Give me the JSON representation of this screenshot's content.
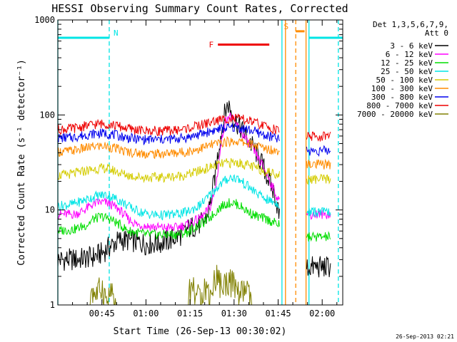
{
  "chart_data": {
    "type": "line",
    "title": "HESSI Observing Summary Count Rates, Corrected",
    "xlabel": "Start Time (26-Sep-13 00:30:02)",
    "ylabel": "Corrected Count Rate (s⁻¹ detector⁻¹)",
    "xlim_minutes_after_0030": [
      0,
      97
    ],
    "ylim": [
      1,
      1000
    ],
    "yscale": "log",
    "x_ticks": [
      {
        "label": "00:45",
        "minute": 15
      },
      {
        "label": "01:00",
        "minute": 30
      },
      {
        "label": "01:15",
        "minute": 45
      },
      {
        "label": "01:30",
        "minute": 60
      },
      {
        "label": "01:45",
        "minute": 75
      },
      {
        "label": "02:00",
        "minute": 90
      }
    ],
    "y_ticks": [
      {
        "label": "1",
        "value": 1
      },
      {
        "label": "10",
        "value": 10
      },
      {
        "label": "100",
        "value": 100
      },
      {
        "label": "1000",
        "value": 1000
      }
    ],
    "legend_header": [
      "Det 1,3,5,6,7,9,",
      "Att 0"
    ],
    "legend_placement": "right",
    "gaps_minutes": [
      [
        75.5,
        84.5
      ]
    ],
    "series": [
      {
        "name": "3 - 6 keV",
        "color": "#000000",
        "points": [
          [
            0,
            3
          ],
          [
            6,
            3
          ],
          [
            12,
            3.2
          ],
          [
            15,
            3.5
          ],
          [
            18,
            4.2
          ],
          [
            21,
            4.8
          ],
          [
            24,
            4.8
          ],
          [
            27,
            4.6
          ],
          [
            30,
            4.4
          ],
          [
            35,
            4.5
          ],
          [
            38,
            4.8
          ],
          [
            42,
            5.5
          ],
          [
            45,
            6.5
          ],
          [
            48,
            7
          ],
          [
            50,
            7.5
          ],
          [
            51,
            9
          ],
          [
            52,
            12
          ],
          [
            53,
            18
          ],
          [
            54,
            30
          ],
          [
            55,
            50
          ],
          [
            56,
            75
          ],
          [
            57,
            110
          ],
          [
            58,
            130
          ],
          [
            59,
            110
          ],
          [
            60,
            90
          ],
          [
            62,
            75
          ],
          [
            64,
            60
          ],
          [
            66,
            48
          ],
          [
            68,
            38
          ],
          [
            70,
            28
          ],
          [
            72,
            20
          ],
          [
            74,
            14
          ],
          [
            75,
            10
          ],
          [
            75.5,
            8
          ],
          [
            84.5,
            2.5
          ],
          [
            90,
            2.5
          ],
          [
            93,
            2.5
          ]
        ]
      },
      {
        "name": "6 - 12 keV",
        "color": "#ff00ff",
        "points": [
          [
            0,
            9
          ],
          [
            6,
            9
          ],
          [
            9,
            10
          ],
          [
            12,
            11.5
          ],
          [
            14,
            12
          ],
          [
            16,
            12
          ],
          [
            18,
            11.5
          ],
          [
            21,
            10
          ],
          [
            24,
            8
          ],
          [
            27,
            7
          ],
          [
            30,
            6.8
          ],
          [
            35,
            6.5
          ],
          [
            40,
            6.5
          ],
          [
            44,
            7
          ],
          [
            48,
            8
          ],
          [
            50,
            9
          ],
          [
            52,
            11
          ],
          [
            53,
            14
          ],
          [
            54,
            20
          ],
          [
            55,
            35
          ],
          [
            56,
            60
          ],
          [
            57,
            85
          ],
          [
            58,
            100
          ],
          [
            59,
            95
          ],
          [
            60,
            85
          ],
          [
            62,
            70
          ],
          [
            64,
            55
          ],
          [
            66,
            45
          ],
          [
            68,
            36
          ],
          [
            70,
            28
          ],
          [
            72,
            21
          ],
          [
            74,
            15
          ],
          [
            75.5,
            12
          ],
          [
            84.5,
            9
          ],
          [
            90,
            9
          ],
          [
            93,
            9
          ]
        ]
      },
      {
        "name": "12 - 25 keV",
        "color": "#00dd00",
        "points": [
          [
            0,
            6
          ],
          [
            6,
            6.3
          ],
          [
            10,
            7
          ],
          [
            12,
            8
          ],
          [
            15,
            8.5
          ],
          [
            18,
            8
          ],
          [
            21,
            7
          ],
          [
            24,
            6
          ],
          [
            27,
            5.8
          ],
          [
            30,
            5.5
          ],
          [
            36,
            5.5
          ],
          [
            40,
            5.5
          ],
          [
            44,
            5.8
          ],
          [
            48,
            7
          ],
          [
            50,
            7.5
          ],
          [
            53,
            9
          ],
          [
            55,
            10.5
          ],
          [
            57,
            11.5
          ],
          [
            59,
            12
          ],
          [
            61,
            11.5
          ],
          [
            63,
            10.5
          ],
          [
            65,
            9.5
          ],
          [
            68,
            8.5
          ],
          [
            71,
            8
          ],
          [
            73,
            7.5
          ],
          [
            75.5,
            7
          ],
          [
            84.5,
            5.2
          ],
          [
            90,
            5.2
          ],
          [
            93,
            5.2
          ]
        ]
      },
      {
        "name": "25 - 50 keV",
        "color": "#00e5e5",
        "points": [
          [
            0,
            11
          ],
          [
            5,
            11.5
          ],
          [
            10,
            13
          ],
          [
            13,
            14
          ],
          [
            16,
            14.5
          ],
          [
            19,
            13.5
          ],
          [
            22,
            12
          ],
          [
            25,
            10.5
          ],
          [
            28,
            9.5
          ],
          [
            31,
            9
          ],
          [
            35,
            8.8
          ],
          [
            40,
            9
          ],
          [
            44,
            9.5
          ],
          [
            48,
            11
          ],
          [
            51,
            13.5
          ],
          [
            54,
            17
          ],
          [
            57,
            20.5
          ],
          [
            59,
            22
          ],
          [
            61,
            21.5
          ],
          [
            63,
            19.5
          ],
          [
            66,
            16.5
          ],
          [
            69,
            14
          ],
          [
            72,
            12.5
          ],
          [
            75.5,
            11.5
          ],
          [
            84.5,
            9.5
          ],
          [
            90,
            9.5
          ],
          [
            93,
            9.5
          ]
        ]
      },
      {
        "name": "50 - 100 keV",
        "color": "#d4cc00",
        "points": [
          [
            0,
            23
          ],
          [
            5,
            24
          ],
          [
            10,
            26
          ],
          [
            13,
            27
          ],
          [
            16,
            27.5
          ],
          [
            19,
            26
          ],
          [
            22,
            24
          ],
          [
            26,
            22.5
          ],
          [
            30,
            22
          ],
          [
            35,
            22
          ],
          [
            40,
            22.5
          ],
          [
            44,
            23.5
          ],
          [
            48,
            25.5
          ],
          [
            51,
            27.5
          ],
          [
            54,
            29.5
          ],
          [
            57,
            31
          ],
          [
            60,
            31.5
          ],
          [
            62,
            31
          ],
          [
            64,
            30
          ],
          [
            67,
            28
          ],
          [
            70,
            26
          ],
          [
            73,
            24.5
          ],
          [
            75.5,
            23.5
          ],
          [
            84.5,
            21
          ],
          [
            90,
            21
          ],
          [
            93,
            21
          ]
        ]
      },
      {
        "name": "100 - 300 keV",
        "color": "#ff8c00",
        "points": [
          [
            0,
            41
          ],
          [
            5,
            42
          ],
          [
            10,
            45
          ],
          [
            13,
            47
          ],
          [
            16,
            47
          ],
          [
            19,
            45
          ],
          [
            22,
            42
          ],
          [
            26,
            40
          ],
          [
            30,
            39
          ],
          [
            35,
            39
          ],
          [
            40,
            40
          ],
          [
            44,
            41
          ],
          [
            48,
            44
          ],
          [
            51,
            47
          ],
          [
            54,
            50
          ],
          [
            57,
            52
          ],
          [
            60,
            53
          ],
          [
            62,
            52
          ],
          [
            64,
            51
          ],
          [
            67,
            48
          ],
          [
            70,
            45
          ],
          [
            73,
            43
          ],
          [
            75.5,
            42
          ],
          [
            84.5,
            30
          ],
          [
            90,
            30
          ],
          [
            93,
            30
          ]
        ]
      },
      {
        "name": "300 - 800 keV",
        "color": "#0000ee",
        "points": [
          [
            0,
            57
          ],
          [
            5,
            58
          ],
          [
            10,
            62
          ],
          [
            13,
            64
          ],
          [
            16,
            64
          ],
          [
            19,
            62
          ],
          [
            22,
            59
          ],
          [
            26,
            56
          ],
          [
            30,
            55
          ],
          [
            35,
            55
          ],
          [
            40,
            56
          ],
          [
            44,
            58
          ],
          [
            48,
            62
          ],
          [
            51,
            66
          ],
          [
            54,
            70
          ],
          [
            57,
            73
          ],
          [
            60,
            74
          ],
          [
            62,
            73
          ],
          [
            64,
            71
          ],
          [
            67,
            67
          ],
          [
            70,
            62
          ],
          [
            73,
            58
          ],
          [
            75.5,
            55
          ],
          [
            84.5,
            42
          ],
          [
            90,
            42
          ],
          [
            93,
            42
          ]
        ]
      },
      {
        "name": "800 - 7000 keV",
        "color": "#ee0000",
        "points": [
          [
            0,
            70
          ],
          [
            5,
            72
          ],
          [
            10,
            77
          ],
          [
            13,
            80
          ],
          [
            16,
            81
          ],
          [
            19,
            78
          ],
          [
            22,
            74
          ],
          [
            26,
            70
          ],
          [
            30,
            68
          ],
          [
            35,
            68
          ],
          [
            40,
            69
          ],
          [
            44,
            72
          ],
          [
            48,
            77
          ],
          [
            51,
            82
          ],
          [
            54,
            87
          ],
          [
            57,
            91
          ],
          [
            60,
            92
          ],
          [
            62,
            91
          ],
          [
            64,
            88
          ],
          [
            67,
            83
          ],
          [
            70,
            77
          ],
          [
            73,
            72
          ],
          [
            75.5,
            68
          ],
          [
            84.5,
            59
          ],
          [
            90,
            59
          ],
          [
            93,
            59
          ]
        ]
      },
      {
        "name": "7000 - 20000 keV",
        "color": "#808000",
        "points": [
          [
            11,
            1
          ],
          [
            11,
            1.9
          ],
          [
            13,
            1.5
          ],
          [
            15,
            1.9
          ],
          [
            17,
            1.2
          ],
          [
            18,
            1.7
          ],
          [
            20,
            1
          ],
          [
            44.5,
            1
          ],
          [
            44.5,
            1.6
          ],
          [
            46,
            1.9
          ],
          [
            48,
            1.4
          ],
          [
            50,
            1.9
          ],
          [
            52,
            1.5
          ],
          [
            54,
            2.6
          ],
          [
            56,
            1.8
          ],
          [
            58,
            2.3
          ],
          [
            60,
            1.9
          ],
          [
            62,
            1.5
          ],
          [
            64,
            1.8
          ],
          [
            66,
            1.2
          ],
          [
            67,
            1
          ]
        ]
      }
    ],
    "annotations": [
      {
        "label": "N",
        "color": "#00e5e5",
        "bar_minutes": [
          0,
          17.5
        ],
        "level": 650
      },
      {
        "label": "F",
        "color": "#ee0000",
        "bar_minutes": [
          54.5,
          72
        ],
        "level": 550
      },
      {
        "label": "S",
        "color": "#ff8c00",
        "bar_minutes": [
          81,
          84
        ],
        "level": 760
      },
      {
        "label": "",
        "color": "#00e5e5",
        "bar_minutes": [
          85.5,
          97
        ],
        "level": 650
      }
    ],
    "vertical_lines": [
      {
        "minute": 0,
        "color": "#00e5e5",
        "style": "solid"
      },
      {
        "minute": 17.5,
        "color": "#00e5e5",
        "style": "dashed"
      },
      {
        "minute": 76.3,
        "color": "#00e5e5",
        "style": "solid"
      },
      {
        "minute": 77.5,
        "color": "#ff8c00",
        "style": "solid"
      },
      {
        "minute": 81,
        "color": "#ff8c00",
        "style": "dashed"
      },
      {
        "minute": 84.5,
        "color": "#ff8c00",
        "style": "solid"
      },
      {
        "minute": 85.5,
        "color": "#00e5e5",
        "style": "solid"
      },
      {
        "minute": 95.5,
        "color": "#00e5e5",
        "style": "dashed"
      }
    ]
  },
  "footer": {
    "timestamp": "26-Sep-2013 02:21"
  }
}
